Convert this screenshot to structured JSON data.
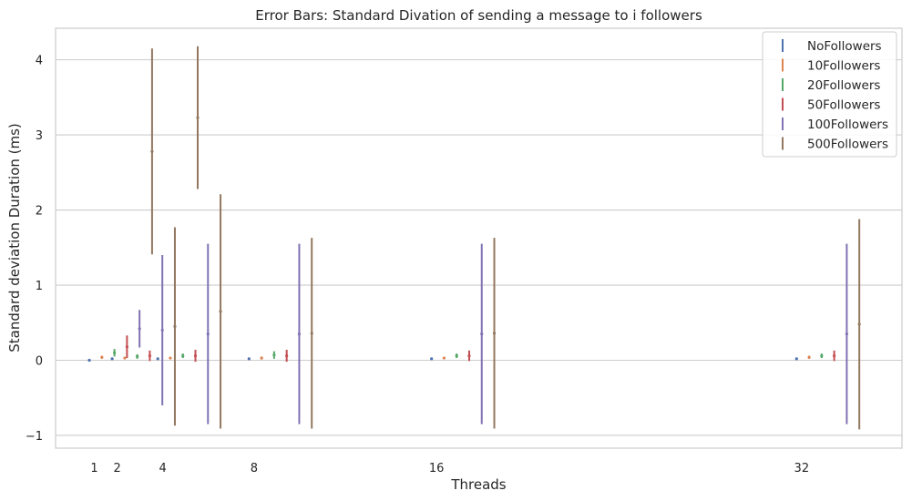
{
  "chart_data": {
    "type": "errorbar",
    "title": "Error Bars: Standard Divation of sending a message to i followers",
    "xlabel": "Threads",
    "ylabel": "Standard deviation Duration (ms)",
    "x": [
      1,
      2,
      4,
      8,
      16,
      32
    ],
    "xticklabels": [
      "1",
      "2",
      "4",
      "8",
      "16",
      "32"
    ],
    "yticks": [
      -1,
      0,
      1,
      2,
      3,
      4
    ],
    "yticklabels": [
      "−1",
      "0",
      "1",
      "2",
      "3",
      "4"
    ],
    "ylim": [
      -1.17,
      4.42
    ],
    "xlim": [
      -0.7,
      36.4
    ],
    "grid": "horizontal",
    "legend_position": "top-right",
    "series": [
      {
        "name": "NoFollowers",
        "color": "#4c72b0",
        "offset": -0.22,
        "mean": [
          0.0,
          0.02,
          0.02,
          0.02,
          0.02,
          0.02
        ],
        "err": [
          0.01,
          0.01,
          0.01,
          0.01,
          0.01,
          0.01
        ]
      },
      {
        "name": "10Followers",
        "color": "#dd8452",
        "offset": 0.33,
        "mean": [
          0.04,
          0.03,
          0.03,
          0.03,
          0.03,
          0.04
        ],
        "err": [
          0.02,
          0.01,
          0.01,
          0.02,
          0.01,
          0.02
        ]
      },
      {
        "name": "20Followers",
        "color": "#55a868",
        "offset": 0.88,
        "mean": [
          0.1,
          0.05,
          0.06,
          0.07,
          0.06,
          0.06
        ],
        "err": [
          0.05,
          0.03,
          0.03,
          0.05,
          0.03,
          0.03
        ]
      },
      {
        "name": "50Followers",
        "color": "#c44e52",
        "offset": 1.43,
        "mean": [
          0.18,
          0.06,
          0.06,
          0.06,
          0.06,
          0.06
        ],
        "err": [
          0.15,
          0.07,
          0.08,
          0.08,
          0.07,
          0.07
        ]
      },
      {
        "name": "100Followers",
        "color": "#8172b3",
        "offset": 1.98,
        "mean": [
          0.42,
          0.4,
          0.35,
          0.35,
          0.35,
          0.35
        ],
        "err": [
          0.25,
          1.0,
          1.2,
          1.2,
          1.2,
          1.2
        ]
      },
      {
        "name": "500Followers",
        "color": "#937860",
        "offset": 2.53,
        "mean": [
          2.78,
          0.45,
          0.65,
          0.36,
          0.36,
          0.48
        ],
        "err": [
          1.37,
          1.32,
          1.56,
          1.27,
          1.27,
          1.4
        ],
        "extra": [
          {
            "x": 3,
            "mean": 3.23,
            "err": 0.95
          }
        ]
      }
    ]
  }
}
